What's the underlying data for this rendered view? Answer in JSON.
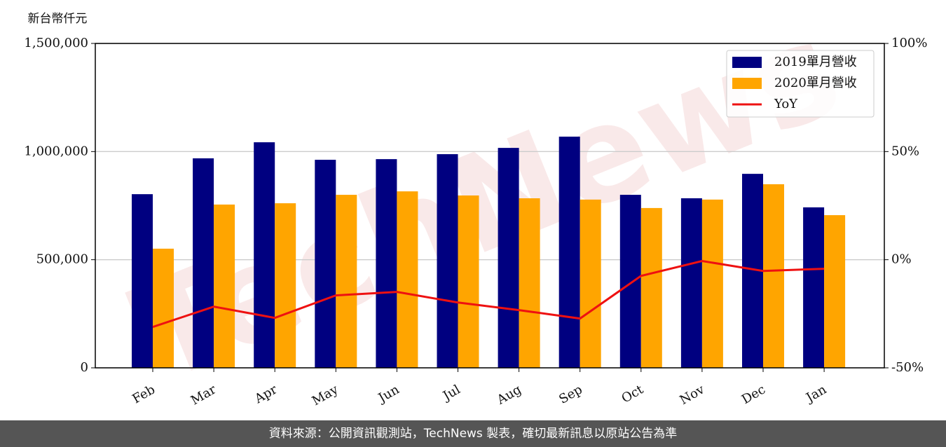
{
  "chart_data": {
    "type": "bar",
    "y_label": "新台幣仟元",
    "watermark": "TechNews",
    "categories": [
      "Feb",
      "Mar",
      "Apr",
      "May",
      "Jun",
      "Jul",
      "Aug",
      "Sep",
      "Oct",
      "Nov",
      "Dec",
      "Jan"
    ],
    "series": [
      {
        "name": "2019單月營收",
        "color": "#000080",
        "values": [
          803000,
          968700,
          1043000,
          962000,
          965000,
          988000,
          1017000,
          1069000,
          800000,
          784000,
          897000,
          742000
        ]
      },
      {
        "name": "2020單月營收",
        "color": "#ffa500",
        "values": [
          551000,
          755000,
          761000,
          800000,
          816000,
          797000,
          784000,
          778000,
          739000,
          778000,
          849000,
          706000
        ]
      },
      {
        "name": "YoY",
        "color": "#ee1111",
        "type": "line",
        "axis": "y2",
        "values": [
          -31.1,
          -21.7,
          -26.9,
          -16.5,
          -14.9,
          -19.8,
          -23.3,
          -27.2,
          -7.5,
          -0.6,
          -5.2,
          -4.2
        ]
      }
    ],
    "ylim": [
      0,
      1500000
    ],
    "yticks": [
      0,
      {
        "value": 500000,
        "label": "500,000"
      },
      {
        "value": 1000000,
        "label": "1,000,000"
      },
      {
        "value": 1500000,
        "label": "1,500,000"
      }
    ],
    "y2lim": [
      -50,
      100
    ],
    "y2ticks": [
      {
        "value": -50,
        "label": "-50%"
      },
      {
        "value": 0,
        "label": "0%"
      },
      {
        "value": 50,
        "label": "50%"
      },
      {
        "value": 100,
        "label": "100%"
      }
    ],
    "grid": true,
    "legend": "upper-right"
  },
  "footer": "資料來源：公開資訊觀測站，TechNews 製表，確切最新訊息以原站公告為準"
}
